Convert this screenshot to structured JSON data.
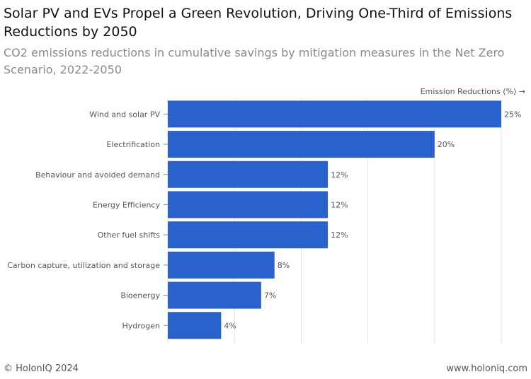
{
  "title": "Solar PV and EVs Propel a Green Revolution, Driving One-Third of Emissions Reductions by 2050",
  "subtitle": "CO2 emissions reductions in cumulative savings by mitigation measures in the Net Zero Scenario, 2022-2050",
  "footer": {
    "copyright": "© HolonIQ 2024",
    "website": "www.holoniq.com"
  },
  "colors": {
    "bar": "#2962cc",
    "grid": "#e3e3e3",
    "axis_text": "#555555"
  },
  "chart_data": {
    "type": "bar",
    "orientation": "horizontal",
    "title": "Solar PV and EVs Propel a Green Revolution, Driving One-Third of Emissions Reductions by 2050",
    "xlabel": "Emission Reductions (%) →",
    "ylabel": "",
    "xlim": [
      0,
      25
    ],
    "x_gridlines": [
      0,
      5,
      10,
      15,
      20,
      25
    ],
    "categories": [
      "Wind and solar PV",
      "Electrification",
      "Behaviour and avoided demand",
      "Energy Efficiency",
      "Other fuel shifts",
      "Carbon capture, utilization and storage",
      "Bioenergy",
      "Hydrogen"
    ],
    "values": [
      25,
      20,
      12,
      12,
      12,
      8,
      7,
      4
    ],
    "value_labels": [
      "25%",
      "20%",
      "12%",
      "12%",
      "12%",
      "8%",
      "7%",
      "4%"
    ]
  }
}
